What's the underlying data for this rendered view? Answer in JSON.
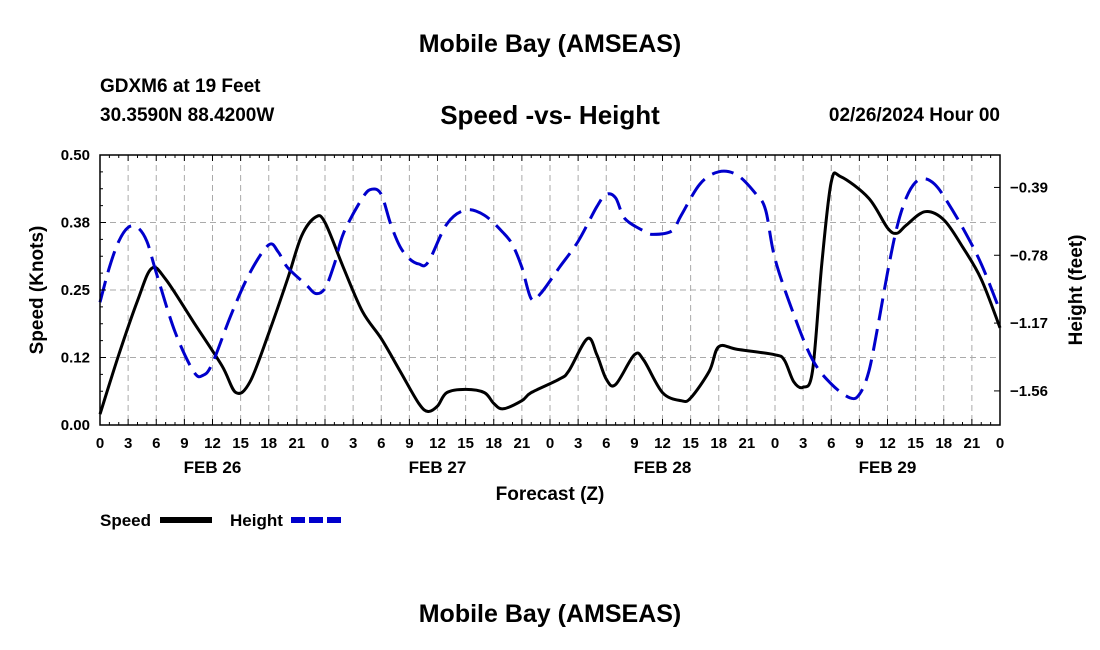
{
  "header": {
    "title": "Mobile Bay (AMSEAS)",
    "station": "GDXM6 at 19 Feet",
    "coordinates": "30.3590N  88.4200W",
    "chart_title": "Speed -vs- Height",
    "datetime": "02/26/2024 Hour 00"
  },
  "footer": {
    "title": "Mobile Bay (AMSEAS)"
  },
  "colors": {
    "speed": "#000000",
    "height": "#0000cc",
    "grid": "#aaaaaa"
  },
  "chart_data": {
    "type": "line",
    "title": "Speed -vs- Height",
    "xlabel": "Forecast (Z)",
    "ylabel": "Speed (Knots)",
    "y2label": "Height (feet)",
    "ylim": [
      0.0,
      0.5
    ],
    "y2lim": [
      -1.756,
      -0.2035
    ],
    "yticks": [
      "0.00",
      "0.12",
      "0.25",
      "0.38",
      "0.50"
    ],
    "y2ticks": [
      "-0.39",
      "-0.78",
      "-1.17",
      "-1.56"
    ],
    "xtick_labels": [
      "0",
      "3",
      "6",
      "9",
      "12",
      "15",
      "18",
      "21",
      "0",
      "3",
      "6",
      "9",
      "12",
      "15",
      "18",
      "21",
      "0",
      "3",
      "6",
      "9",
      "12",
      "15",
      "18",
      "21",
      "0",
      "3",
      "6",
      "9",
      "12",
      "15",
      "18",
      "21",
      "0"
    ],
    "date_labels": [
      {
        "label": "FEB 26",
        "hour": 12
      },
      {
        "label": "FEB 27",
        "hour": 36
      },
      {
        "label": "FEB 28",
        "hour": 60
      },
      {
        "label": "FEB 29",
        "hour": 84
      }
    ],
    "grid": true,
    "legend_position": "bottom-left",
    "series": [
      {
        "name": "Speed",
        "axis": "left",
        "style": "solid",
        "points": [
          [
            0,
            0.02
          ],
          [
            2,
            0.13
          ],
          [
            4,
            0.23
          ],
          [
            5.5,
            0.29
          ],
          [
            7,
            0.27
          ],
          [
            10,
            0.19
          ],
          [
            13,
            0.11
          ],
          [
            14.5,
            0.06
          ],
          [
            16,
            0.08
          ],
          [
            18,
            0.17
          ],
          [
            20,
            0.27
          ],
          [
            21.5,
            0.35
          ],
          [
            23,
            0.385
          ],
          [
            24,
            0.375
          ],
          [
            26,
            0.29
          ],
          [
            28,
            0.21
          ],
          [
            30,
            0.16
          ],
          [
            32,
            0.1
          ],
          [
            34,
            0.04
          ],
          [
            35,
            0.025
          ],
          [
            36,
            0.035
          ],
          [
            37,
            0.06
          ],
          [
            39,
            0.066
          ],
          [
            41,
            0.06
          ],
          [
            42,
            0.04
          ],
          [
            43,
            0.03
          ],
          [
            45,
            0.045
          ],
          [
            46,
            0.06
          ],
          [
            49,
            0.085
          ],
          [
            50,
            0.1
          ],
          [
            52,
            0.16
          ],
          [
            53,
            0.13
          ],
          [
            54,
            0.085
          ],
          [
            55,
            0.075
          ],
          [
            57,
            0.13
          ],
          [
            58,
            0.12
          ],
          [
            60,
            0.06
          ],
          [
            62,
            0.045
          ],
          [
            63,
            0.05
          ],
          [
            65,
            0.1
          ],
          [
            66,
            0.145
          ],
          [
            68,
            0.14
          ],
          [
            72,
            0.13
          ],
          [
            73,
            0.12
          ],
          [
            74,
            0.08
          ],
          [
            75,
            0.07
          ],
          [
            76,
            0.1
          ],
          [
            77,
            0.3
          ],
          [
            78,
            0.45
          ],
          [
            79,
            0.46
          ],
          [
            82,
            0.42
          ],
          [
            84,
            0.365
          ],
          [
            85,
            0.355
          ],
          [
            86,
            0.37
          ],
          [
            88,
            0.395
          ],
          [
            90,
            0.38
          ],
          [
            92,
            0.33
          ],
          [
            94,
            0.27
          ],
          [
            96,
            0.18
          ]
        ]
      },
      {
        "name": "Height",
        "axis": "right",
        "style": "dashed",
        "points": [
          [
            0,
            -1.05
          ],
          [
            1,
            -0.85
          ],
          [
            2,
            -0.7
          ],
          [
            3,
            -0.62
          ],
          [
            4,
            -0.62
          ],
          [
            5,
            -0.7
          ],
          [
            6,
            -0.88
          ],
          [
            8,
            -1.22
          ],
          [
            10,
            -1.45
          ],
          [
            11,
            -1.47
          ],
          [
            12,
            -1.4
          ],
          [
            14,
            -1.12
          ],
          [
            16,
            -0.88
          ],
          [
            18,
            -0.72
          ],
          [
            19,
            -0.76
          ],
          [
            20,
            -0.85
          ],
          [
            22,
            -0.95
          ],
          [
            23,
            -1.0
          ],
          [
            24,
            -0.97
          ],
          [
            25,
            -0.83
          ],
          [
            26,
            -0.65
          ],
          [
            28,
            -0.45
          ],
          [
            29,
            -0.4
          ],
          [
            30,
            -0.43
          ],
          [
            31,
            -0.6
          ],
          [
            32,
            -0.73
          ],
          [
            33,
            -0.8
          ],
          [
            34,
            -0.83
          ],
          [
            35,
            -0.82
          ],
          [
            37,
            -0.6
          ],
          [
            39,
            -0.52
          ],
          [
            41,
            -0.55
          ],
          [
            43,
            -0.65
          ],
          [
            44,
            -0.72
          ],
          [
            45,
            -0.85
          ],
          [
            46,
            -1.03
          ],
          [
            47,
            -1.0
          ],
          [
            49,
            -0.85
          ],
          [
            51,
            -0.7
          ],
          [
            53,
            -0.5
          ],
          [
            54,
            -0.43
          ],
          [
            55,
            -0.45
          ],
          [
            56,
            -0.57
          ],
          [
            58,
            -0.64
          ],
          [
            59,
            -0.66
          ],
          [
            61,
            -0.64
          ],
          [
            62,
            -0.55
          ],
          [
            64,
            -0.37
          ],
          [
            66,
            -0.3
          ],
          [
            68,
            -0.32
          ],
          [
            70,
            -0.43
          ],
          [
            71,
            -0.52
          ],
          [
            72,
            -0.8
          ],
          [
            74,
            -1.12
          ],
          [
            76,
            -1.38
          ],
          [
            78,
            -1.52
          ],
          [
            80,
            -1.6
          ],
          [
            81,
            -1.58
          ],
          [
            82,
            -1.45
          ],
          [
            83,
            -1.18
          ],
          [
            84,
            -0.88
          ],
          [
            85,
            -0.62
          ],
          [
            86,
            -0.45
          ],
          [
            87,
            -0.36
          ],
          [
            88,
            -0.34
          ],
          [
            89,
            -0.37
          ],
          [
            90,
            -0.44
          ],
          [
            92,
            -0.62
          ],
          [
            94,
            -0.83
          ],
          [
            96,
            -1.1
          ]
        ]
      }
    ]
  }
}
